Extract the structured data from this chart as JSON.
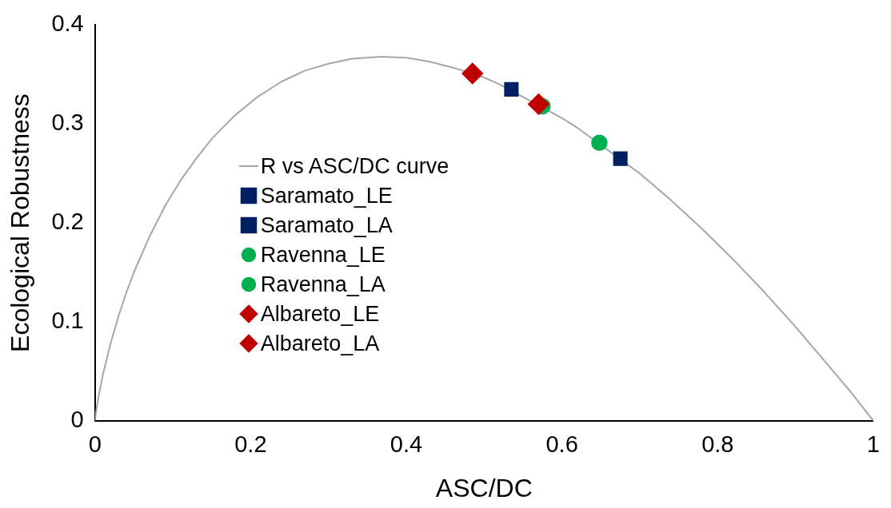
{
  "chart_data": {
    "type": "scatter",
    "xlabel": "ASC/DC",
    "ylabel": "Ecological Robustness",
    "xlim": [
      0,
      1
    ],
    "xticks": [
      0,
      0.2,
      0.4,
      0.6,
      0.8,
      1
    ],
    "ylim": [
      0,
      0.4
    ],
    "yticks": [
      0,
      0.1,
      0.2,
      0.3,
      0.4
    ],
    "grid": false,
    "legend": "left",
    "series": [
      {
        "name": "R vs ASC/DC curve",
        "type": "line",
        "marker": "none",
        "color": "#a6a6a6",
        "x": [
          0,
          0.002,
          0.005,
          0.01,
          0.02,
          0.03,
          0.04,
          0.05,
          0.07,
          0.09,
          0.11,
          0.13,
          0.15,
          0.18,
          0.21,
          0.24,
          0.27,
          0.3,
          0.33,
          0.368,
          0.4,
          0.43,
          0.46,
          0.5,
          0.52,
          0.6,
          0.62,
          0.7,
          0.74,
          0.78,
          0.82,
          0.86,
          0.9,
          0.94,
          0.97,
          1
        ],
        "values": [
          0,
          0.012,
          0.026,
          0.046,
          0.078,
          0.105,
          0.129,
          0.15,
          0.186,
          0.217,
          0.243,
          0.265,
          0.285,
          0.309,
          0.328,
          0.343,
          0.354,
          0.361,
          0.366,
          0.368,
          0.367,
          0.363,
          0.357,
          0.347,
          0.34,
          0.306,
          0.296,
          0.25,
          0.223,
          0.194,
          0.163,
          0.13,
          0.095,
          0.058,
          0.03,
          0
        ]
      },
      {
        "name": "Saramato_LE",
        "marker": "square",
        "color": "#002060",
        "x": [
          0.535
        ],
        "values": [
          0.335
        ]
      },
      {
        "name": "Saramato_LA",
        "marker": "square",
        "color": "#002060",
        "x": [
          0.675
        ],
        "values": [
          0.265
        ]
      },
      {
        "name": "Ravenna_LE",
        "marker": "circle",
        "color": "#00b050",
        "x": [
          0.575
        ],
        "values": [
          0.318
        ]
      },
      {
        "name": "Ravenna_LA",
        "marker": "circle",
        "color": "#00b050",
        "x": [
          0.648
        ],
        "values": [
          0.281
        ]
      },
      {
        "name": "Albareto_LE",
        "marker": "diamond",
        "color": "#c00000",
        "x": [
          0.485
        ],
        "values": [
          0.351
        ]
      },
      {
        "name": "Albareto_LA",
        "marker": "diamond",
        "color": "#c00000",
        "x": [
          0.57
        ],
        "values": [
          0.32
        ]
      }
    ]
  }
}
